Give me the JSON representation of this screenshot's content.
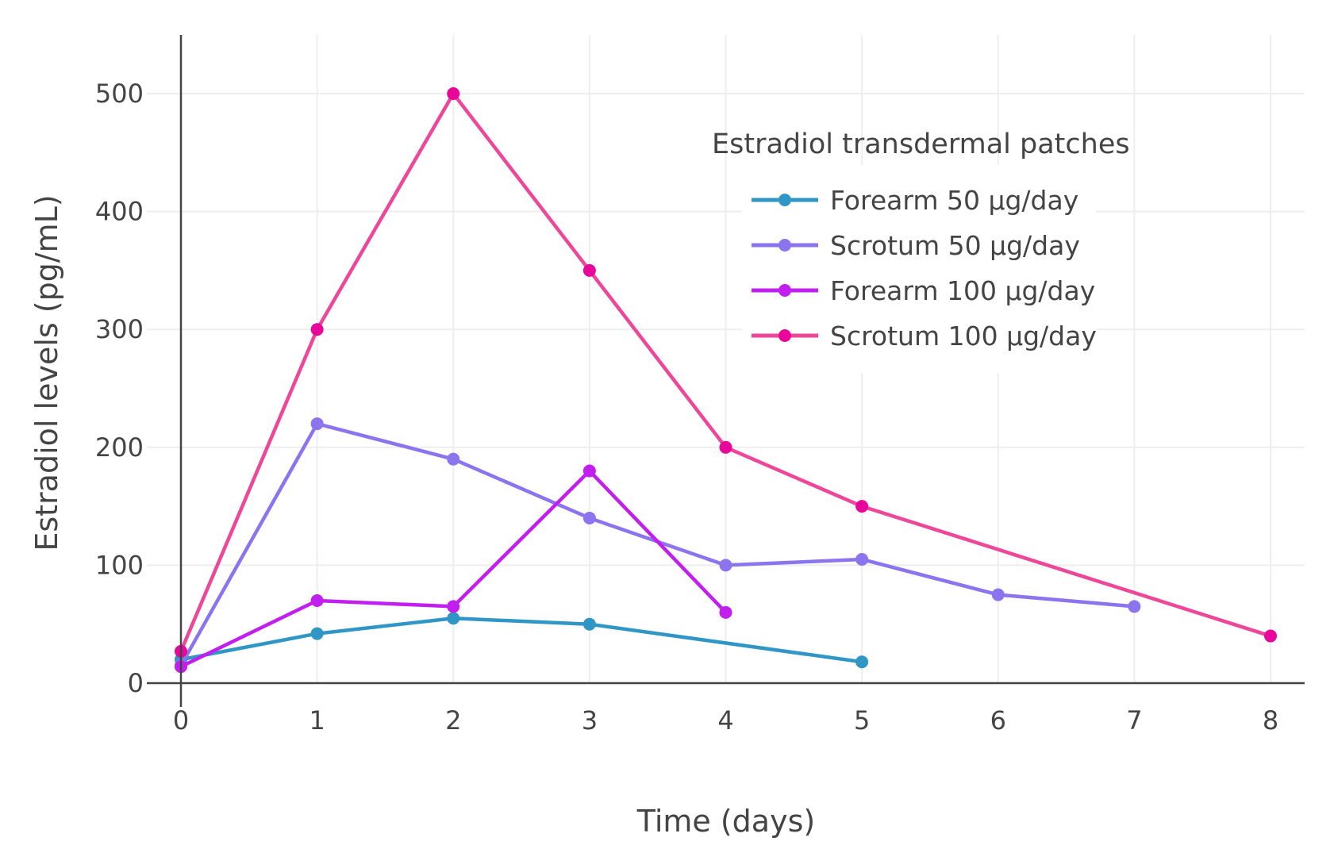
{
  "chart_data": {
    "type": "line",
    "xlabel": "Time (days)",
    "ylabel": "Estradiol levels (pg/mL)",
    "xlim": [
      0,
      8
    ],
    "ylim": [
      0,
      550
    ],
    "x_ticks": [
      0,
      1,
      2,
      3,
      4,
      5,
      6,
      7,
      8
    ],
    "y_ticks": [
      0,
      100,
      200,
      300,
      400,
      500
    ],
    "grid": true,
    "legend": {
      "title": "Estradiol transdermal patches",
      "placement": "top-right"
    },
    "series": [
      {
        "name": "Forearm 50 µg/day",
        "line_color": "#3096c6",
        "marker_color": "#3096c6",
        "x": [
          0,
          1,
          2,
          3,
          5
        ],
        "y": [
          20,
          42,
          55,
          50,
          18
        ]
      },
      {
        "name": "Scrotum 50 µg/day",
        "line_color": "#8c74ee",
        "marker_color": "#8c74ee",
        "x": [
          0,
          1,
          2,
          3,
          4,
          5,
          6,
          7
        ],
        "y": [
          15,
          220,
          190,
          140,
          100,
          105,
          75,
          65
        ]
      },
      {
        "name": "Forearm 100 µg/day",
        "line_color": "#c21ef0",
        "marker_color": "#c21ef0",
        "x": [
          0,
          1,
          2,
          3,
          4
        ],
        "y": [
          14,
          70,
          65,
          180,
          60
        ]
      },
      {
        "name": "Scrotum 100 µg/day",
        "line_color": "#ee4699",
        "marker_color": "#e8079a",
        "x": [
          0,
          1,
          2,
          3,
          4,
          5,
          8
        ],
        "y": [
          27,
          300,
          500,
          350,
          200,
          150,
          40
        ]
      }
    ]
  }
}
